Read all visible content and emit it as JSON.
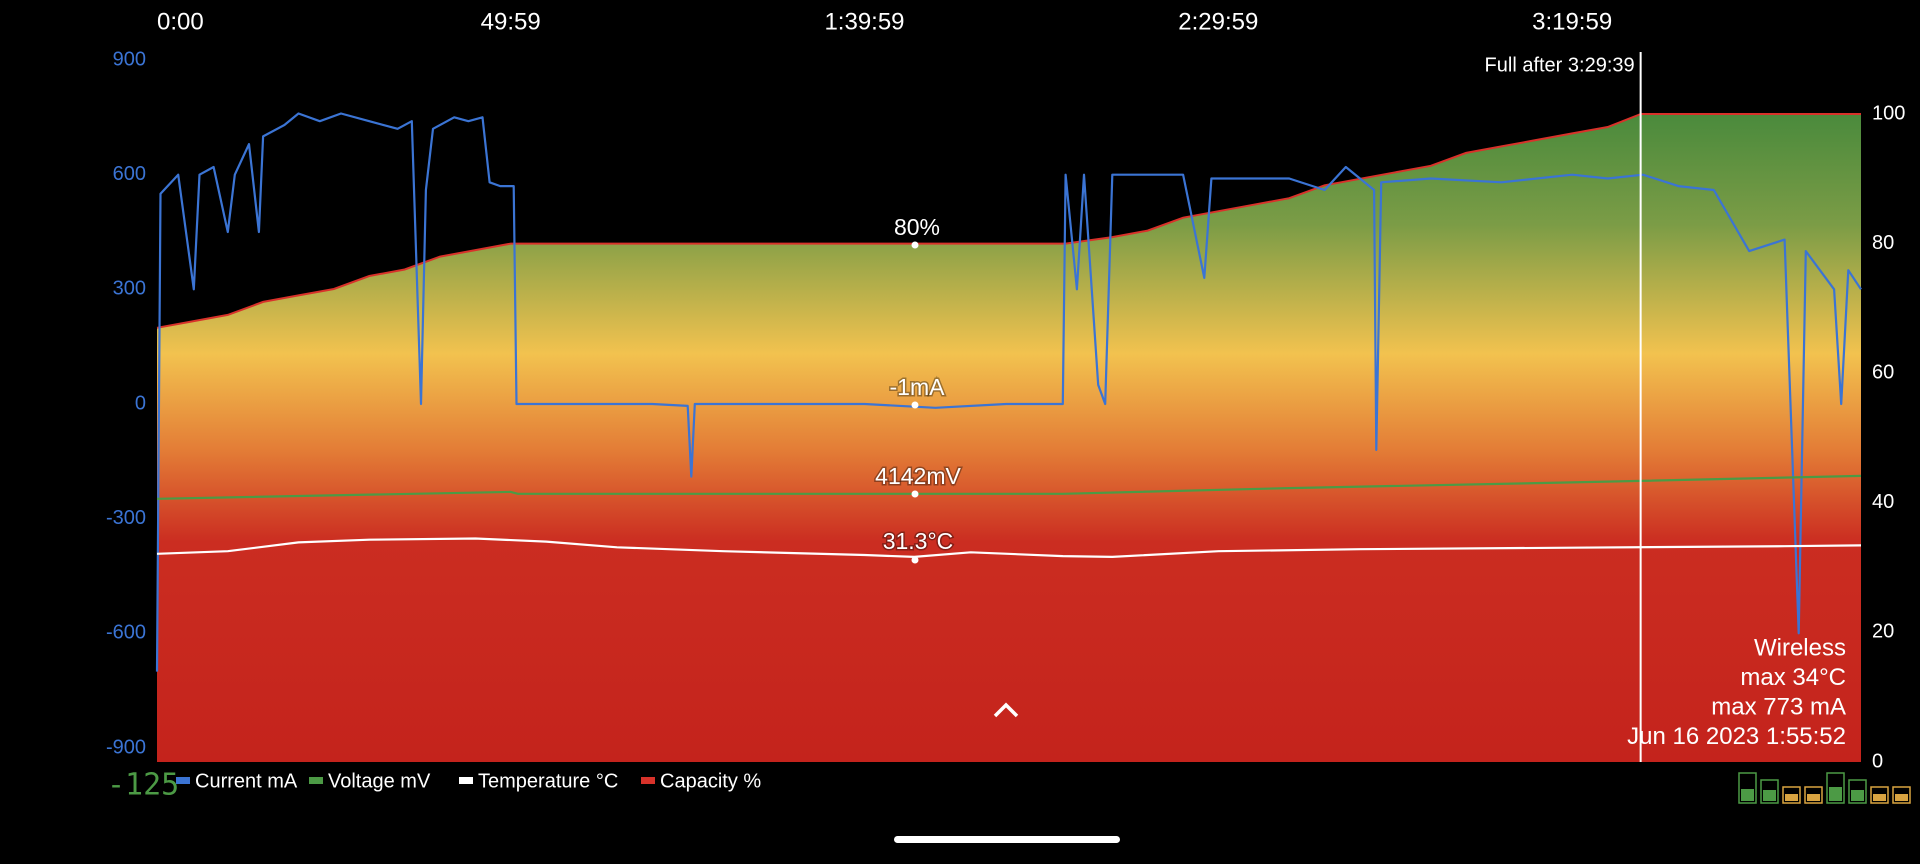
{
  "chart_data": {
    "type": "line",
    "xlim": [
      0,
      240.8
    ],
    "xticks": [
      {
        "value": 0,
        "label": "0:00"
      },
      {
        "value": 49.98,
        "label": "49:59"
      },
      {
        "value": 99.98,
        "label": "1:39:59"
      },
      {
        "value": 149.98,
        "label": "2:29:59"
      },
      {
        "value": 199.98,
        "label": "3:19:59"
      }
    ],
    "ylim": [
      -900,
      900
    ],
    "yticks": [
      -900,
      -600,
      -300,
      0,
      300,
      600,
      900
    ],
    "y2lim": [
      0,
      100
    ],
    "y2ticks": [
      0,
      20,
      40,
      60,
      80,
      100
    ],
    "series": [
      {
        "name": "Current mA",
        "color": "#3b74d4",
        "x": [
          0,
          0.5,
          3,
          5.2,
          6,
          8,
          10,
          11,
          13,
          14.4,
          15,
          18,
          20,
          23,
          26,
          30,
          34,
          36,
          37.3,
          38,
          39,
          42,
          44,
          46,
          47,
          48.5,
          50.4,
          50.8,
          60,
          70,
          75,
          75.5,
          76,
          90,
          100,
          110,
          120,
          128,
          128.4,
          130,
          131,
          133,
          134,
          135,
          145,
          148,
          149,
          160,
          165,
          168,
          172,
          172.3,
          173,
          180,
          190,
          200,
          205,
          210,
          215,
          220,
          225,
          230,
          232,
          233,
          237,
          238,
          239,
          240.8
        ],
        "values": [
          -700,
          550,
          600,
          300,
          600,
          620,
          450,
          600,
          680,
          450,
          700,
          730,
          760,
          740,
          760,
          740,
          720,
          740,
          0,
          560,
          720,
          750,
          740,
          750,
          580,
          570,
          570,
          0,
          0,
          0,
          -5,
          -190,
          0,
          0,
          0,
          -10,
          0,
          0,
          600,
          300,
          600,
          50,
          0,
          600,
          600,
          330,
          590,
          590,
          560,
          620,
          560,
          -120,
          580,
          590,
          580,
          600,
          590,
          600,
          570,
          560,
          400,
          430,
          -600,
          400,
          300,
          0,
          350,
          300
        ]
      },
      {
        "name": "Voltage mV",
        "color": "#4c9a45",
        "x": [
          0,
          50,
          51,
          128,
          160,
          200,
          240.8
        ],
        "values": [
          -248,
          -230,
          -235,
          -235,
          -220,
          -205,
          -188
        ]
      },
      {
        "name": "Temperature °C",
        "color": "#ffffff",
        "x": [
          0,
          10,
          20,
          30,
          45,
          55,
          65,
          80,
          100,
          107,
          115,
          128,
          135,
          150,
          170,
          200,
          230,
          240.8
        ],
        "values": [
          -392,
          -385,
          -362,
          -355,
          -352,
          -360,
          -375,
          -385,
          -395,
          -400,
          -388,
          -398,
          -400,
          -385,
          -380,
          -376,
          -372,
          -370
        ]
      },
      {
        "name": "Capacity %",
        "color": "#d8322a",
        "axis": "y2",
        "x": [
          0,
          5,
          10,
          15,
          20,
          25,
          30,
          35,
          40,
          45,
          50,
          60,
          70,
          80,
          90,
          100,
          110,
          120,
          128.4,
          135,
          140,
          145,
          150,
          155,
          160,
          165,
          170,
          175,
          180,
          185,
          190,
          195,
          200,
          205,
          209.7,
          215,
          220,
          230,
          240.8
        ],
        "values": [
          67,
          68,
          69,
          71,
          72,
          73,
          75,
          76,
          78,
          79,
          80,
          80,
          80,
          80,
          80,
          80,
          80,
          80,
          80,
          81,
          82,
          84,
          85,
          86,
          87,
          89,
          90,
          91,
          92,
          94,
          95,
          96,
          97,
          98,
          100,
          100,
          100,
          100,
          100
        ]
      }
    ],
    "annotations": [
      "80%",
      "-1mA",
      "4142mV",
      "31.3°C"
    ],
    "full_marker": {
      "x": 209.66,
      "label": "Full after 3:29:39"
    },
    "info_lines": [
      "Wireless",
      "max 34°C",
      "max 773 mA",
      "Jun 16 2023 1:55:52"
    ],
    "footer_value": -125
  }
}
